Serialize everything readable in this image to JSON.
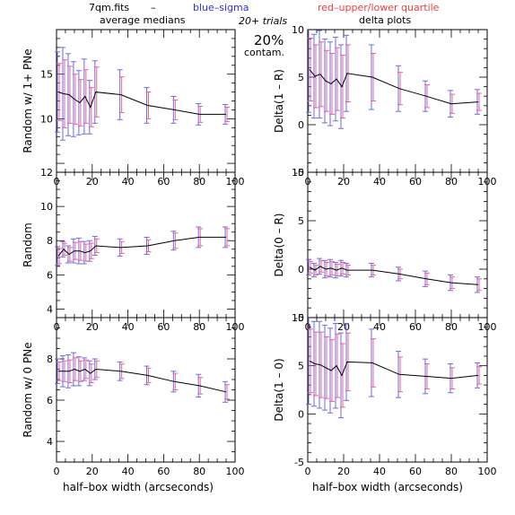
{
  "header": {
    "file": "7qm.fits",
    "dash": "–",
    "blue_label": "blue–sigma",
    "red_label": "red–upper/lower quartile",
    "col_left": "average medians",
    "col_right": "delta plots",
    "trials": "20+ trials",
    "contam_pct": "20%",
    "contam": "contam."
  },
  "colors": {
    "line": "#000000",
    "blue": "#6a6af0",
    "red": "#f06090",
    "bluetext": "#3030e8",
    "redtext": "#f04040"
  },
  "chart_data": [
    {
      "type": "line",
      "ylabel": "Random w/ 1+ PNe",
      "xlim": [
        0,
        100
      ],
      "ylim": [
        4,
        20
      ],
      "yticks": [
        10,
        15
      ],
      "xticks": [
        0,
        20,
        40,
        60,
        80,
        100
      ],
      "x": [
        1,
        4,
        7,
        10,
        13,
        16,
        19,
        22,
        36,
        51,
        66,
        80,
        95
      ],
      "y": [
        13,
        12.8,
        12.7,
        12.2,
        11.8,
        12.5,
        11.3,
        13,
        12.7,
        11.5,
        11,
        10.5,
        10.5
      ],
      "blue_err": [
        4.5,
        5.2,
        4.6,
        4.2,
        3.6,
        4.2,
        3.0,
        3.5,
        2.8,
        2.0,
        1.5,
        1.2,
        1.1
      ],
      "red_err": [
        3.2,
        3.8,
        3.2,
        2.8,
        2.6,
        3.0,
        2.2,
        2.8,
        2.0,
        1.5,
        1.1,
        0.9,
        0.8
      ]
    },
    {
      "type": "line",
      "ylabel": "Random",
      "xlim": [
        0,
        100
      ],
      "ylim": [
        3.5,
        12
      ],
      "yticks": [
        4,
        6,
        8,
        10,
        12
      ],
      "xticks": [
        0,
        20,
        40,
        60,
        80,
        100
      ],
      "x": [
        1,
        4,
        7,
        10,
        13,
        16,
        19,
        22,
        36,
        51,
        66,
        80,
        95
      ],
      "y": [
        7.1,
        7.5,
        7.2,
        7.4,
        7.4,
        7.3,
        7.4,
        7.7,
        7.6,
        7.7,
        8,
        8.2,
        8.2
      ],
      "blue_err": [
        0.55,
        0.45,
        0.5,
        0.7,
        0.75,
        0.65,
        0.6,
        0.55,
        0.5,
        0.5,
        0.55,
        0.6,
        0.6
      ],
      "red_err": [
        0.45,
        0.35,
        0.4,
        0.5,
        0.55,
        0.5,
        0.45,
        0.4,
        0.35,
        0.35,
        0.45,
        0.5,
        0.5
      ]
    },
    {
      "type": "line",
      "ylabel": "Random w/ 0 PNe",
      "xlim": [
        0,
        100
      ],
      "ylim": [
        3,
        10
      ],
      "yticks": [
        4,
        6,
        8
      ],
      "xticks": [
        0,
        20,
        40,
        60,
        80,
        100
      ],
      "x": [
        1,
        4,
        7,
        10,
        13,
        16,
        19,
        22,
        36,
        51,
        66,
        80,
        95
      ],
      "y": [
        7.4,
        7.4,
        7.4,
        7.5,
        7.4,
        7.5,
        7.3,
        7.5,
        7.4,
        7.2,
        6.9,
        6.7,
        6.4
      ],
      "blue_err": [
        0.6,
        0.75,
        0.8,
        0.8,
        0.7,
        0.55,
        0.6,
        0.5,
        0.45,
        0.45,
        0.5,
        0.55,
        0.5
      ],
      "red_err": [
        0.45,
        0.5,
        0.55,
        0.55,
        0.5,
        0.45,
        0.45,
        0.4,
        0.35,
        0.35,
        0.4,
        0.4,
        0.35
      ]
    },
    {
      "type": "line",
      "ylabel": "Delta(1 – R)",
      "xlim": [
        0,
        100
      ],
      "ylim": [
        -5,
        10
      ],
      "yticks": [
        -5,
        0,
        5,
        10
      ],
      "xticks": [
        0,
        20,
        40,
        60,
        80,
        100
      ],
      "x": [
        1,
        4,
        7,
        10,
        13,
        16,
        19,
        22,
        36,
        51,
        66,
        80,
        95
      ],
      "y": [
        5.8,
        5.1,
        5.3,
        4.6,
        4.3,
        4.8,
        4.0,
        5.4,
        5.0,
        3.8,
        3.0,
        2.2,
        2.4
      ],
      "blue_err": [
        4.5,
        4.4,
        4.6,
        4.4,
        4.4,
        4.4,
        4.4,
        4.0,
        3.4,
        2.4,
        1.6,
        1.4,
        1.3
      ],
      "red_err": [
        3.3,
        3.3,
        3.4,
        3.2,
        3.2,
        3.3,
        3.3,
        3.0,
        2.5,
        1.7,
        1.2,
        1.0,
        0.9
      ]
    },
    {
      "type": "line",
      "ylabel": "Delta(0 – R)",
      "xlim": [
        0,
        100
      ],
      "ylim": [
        -5,
        10
      ],
      "yticks": [
        -5,
        0,
        5,
        10
      ],
      "xticks": [
        0,
        20,
        40,
        60,
        80,
        100
      ],
      "x": [
        1,
        4,
        7,
        10,
        13,
        16,
        19,
        22,
        36,
        51,
        66,
        80,
        95
      ],
      "y": [
        0.2,
        -0.1,
        0.3,
        0.0,
        0.1,
        -0.1,
        0.1,
        -0.1,
        -0.1,
        -0.5,
        -1.0,
        -1.4,
        -1.6
      ],
      "blue_err": [
        0.8,
        0.7,
        0.8,
        0.9,
        0.9,
        0.8,
        0.8,
        0.7,
        0.7,
        0.7,
        0.8,
        0.8,
        0.8
      ],
      "red_err": [
        0.6,
        0.5,
        0.6,
        0.7,
        0.7,
        0.6,
        0.6,
        0.5,
        0.5,
        0.5,
        0.6,
        0.6,
        0.6
      ]
    },
    {
      "type": "line",
      "ylabel": "Delta(1 – 0)",
      "xlim": [
        0,
        100
      ],
      "ylim": [
        -5,
        10
      ],
      "yticks": [
        -5,
        0,
        5,
        10
      ],
      "xticks": [
        0,
        20,
        40,
        60,
        80,
        100
      ],
      "x": [
        1,
        4,
        7,
        10,
        13,
        16,
        19,
        22,
        36,
        51,
        66,
        80,
        95
      ],
      "y": [
        5.5,
        5.2,
        5.1,
        4.8,
        4.5,
        5.0,
        4.0,
        5.4,
        5.3,
        4.1,
        3.9,
        3.7,
        4.0
      ],
      "blue_err": [
        4.5,
        4.4,
        4.5,
        4.4,
        4.4,
        4.4,
        4.4,
        4.0,
        3.5,
        2.4,
        1.8,
        1.5,
        1.3
      ],
      "red_err": [
        3.3,
        3.3,
        3.4,
        3.2,
        3.2,
        3.3,
        3.3,
        3.0,
        2.5,
        1.8,
        1.3,
        1.1,
        0.9
      ]
    }
  ],
  "xlabel": "half–box width (arcseconds)"
}
